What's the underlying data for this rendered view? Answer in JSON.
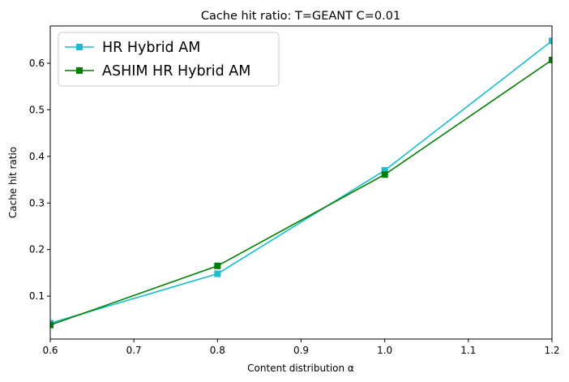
{
  "chart_data": {
    "type": "line",
    "title": "Cache hit ratio: T=GEANT C=0.01",
    "xlabel": "Content distribution α",
    "ylabel": "Cache hit ratio",
    "xlim": [
      0.6,
      1.2
    ],
    "ylim": [
      0.008,
      0.68
    ],
    "xticks": [
      0.6,
      0.7,
      0.8,
      0.9,
      1.0,
      1.1,
      1.2
    ],
    "xtick_labels": [
      "0.6",
      "0.7",
      "0.8",
      "0.9",
      "1.0",
      "1.1",
      "1.2"
    ],
    "yticks": [
      0.1,
      0.2,
      0.3,
      0.4,
      0.5,
      0.6
    ],
    "ytick_labels": [
      "0.1",
      "0.2",
      "0.3",
      "0.4",
      "0.5",
      "0.6"
    ],
    "grid": false,
    "legend_position": "top-left",
    "x": [
      0.6,
      0.8,
      1.0,
      1.2
    ],
    "series": [
      {
        "name": "HR Hybrid AM",
        "color": "#17becf",
        "marker": "square",
        "values": [
          0.042,
          0.148,
          0.37,
          0.648
        ]
      },
      {
        "name": "ASHIM HR Hybrid AM",
        "color": "#008000",
        "marker": "square",
        "values": [
          0.038,
          0.165,
          0.361,
          0.607
        ]
      }
    ]
  }
}
